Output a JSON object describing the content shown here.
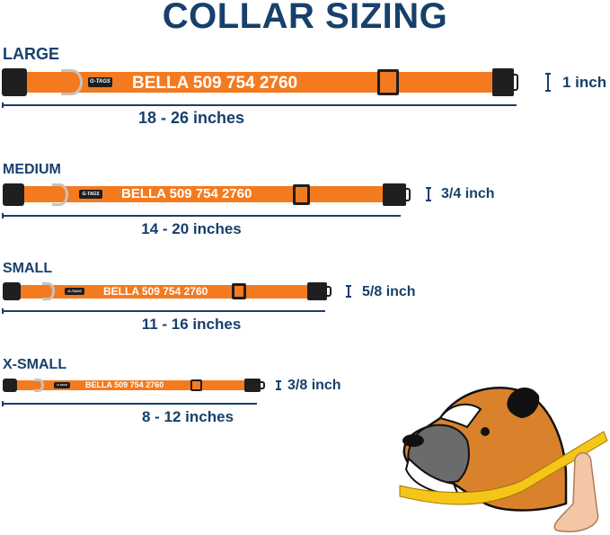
{
  "title": "COLLAR SIZING",
  "colors": {
    "title": "#17406b",
    "collar": "#f47a20",
    "hardware": "#1f1f1f"
  },
  "collar_text": "BELLA 509 754 2760",
  "tag_logo": "G-TAGS",
  "sizes": [
    {
      "label": "LARGE",
      "length": "18 - 26 inches",
      "width": "1 inch"
    },
    {
      "label": "MEDIUM",
      "length": "14 - 20 inches",
      "width": "3/4 inch"
    },
    {
      "label": "SMALL",
      "length": "11 - 16 inches",
      "width": "5/8 inch"
    },
    {
      "label": "X-SMALL",
      "length": "8 - 12 inches",
      "width": "3/8 inch"
    }
  ],
  "illustration": "boxer-dog-neck-measuring-tape"
}
